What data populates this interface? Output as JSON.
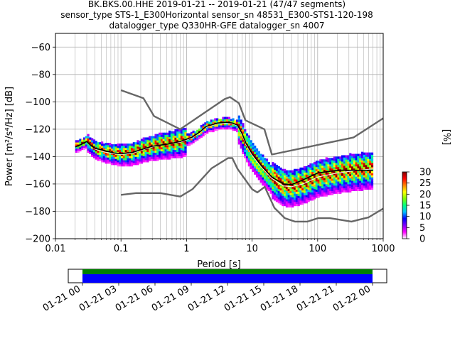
{
  "chart_data": {
    "type": "heatmap",
    "title": [
      "BK.BKS.00.HHE   2019-01-21 -- 2019-01-21  (47/47 segments)",
      "sensor_type STS-1_E300Horizontal sensor_sn 48531_E300-STS1-120-198",
      "datalogger_type Q330HR-GFE datalogger_sn 4007"
    ],
    "xlabel": "Period [s]",
    "ylabel": "Power [m²/s⁴/Hz] [dB]",
    "xscale": "log",
    "xlim": [
      0.01,
      1000
    ],
    "ylim": [
      -200,
      -50
    ],
    "x_ticks": [
      "0.01",
      "0.1",
      "1",
      "10",
      "100",
      "1000"
    ],
    "y_ticks": [
      "−200",
      "−180",
      "−160",
      "−140",
      "−120",
      "−100",
      "−80",
      "−60"
    ],
    "grid": true,
    "colorbar": {
      "label": "[%]",
      "range": [
        0,
        30
      ],
      "ticks": [
        "0",
        "5",
        "10",
        "15",
        "20",
        "25",
        "30"
      ],
      "colors": [
        "#ffffff",
        "#ff00ff",
        "#7f00ff",
        "#0000ff",
        "#00c0ff",
        "#00ff80",
        "#80ff00",
        "#ffff00",
        "#ff8000",
        "#ff0000",
        "#800000"
      ]
    },
    "noise_models": {
      "high": {
        "x": [
          0.1,
          0.22,
          0.32,
          0.8,
          3.8,
          4.6,
          6.3,
          7.9,
          15.4,
          20,
          354.8,
          1000
        ],
        "y": [
          -91.5,
          -97.4,
          -110.5,
          -120,
          -98,
          -96.5,
          -101,
          -113.5,
          -120,
          -138.5,
          -126,
          -112
        ]
      },
      "low": {
        "x": [
          0.1,
          0.17,
          0.4,
          0.8,
          1.24,
          2.4,
          4.3,
          5,
          6,
          10,
          12,
          15.6,
          21.9,
          31.6,
          45,
          70,
          101,
          154,
          328,
          600,
          1000
        ],
        "y": [
          -168,
          -166.7,
          -166.7,
          -169.2,
          -163.7,
          -148.6,
          -141.1,
          -141.1,
          -149,
          -163.8,
          -166.2,
          -162.1,
          -177.5,
          -185,
          -187.5,
          -187.5,
          -185,
          -185,
          -187.5,
          -184.4,
          -178
        ]
      }
    },
    "mean_curve": {
      "x": [
        0.02,
        0.025,
        0.03,
        0.035,
        0.04,
        0.05,
        0.06,
        0.08,
        0.1,
        0.15,
        0.2,
        0.3,
        0.5,
        0.8,
        1.2,
        1.6,
        2,
        3,
        4,
        5,
        6,
        7,
        8,
        10,
        14,
        20,
        30,
        40,
        60,
        100,
        200,
        400,
        700
      ],
      "y": [
        -133,
        -131,
        -129,
        -132,
        -134,
        -135,
        -136,
        -137.5,
        -138,
        -137,
        -135,
        -132.5,
        -131,
        -129,
        -126,
        -122,
        -118,
        -115.5,
        -115,
        -115.5,
        -117,
        -123,
        -130,
        -138,
        -147,
        -155,
        -160,
        -160.5,
        -157,
        -152,
        -150,
        -150,
        -150
      ]
    },
    "mode_curve": {
      "x": [
        0.02,
        0.025,
        0.03,
        0.035,
        0.04,
        0.05,
        0.06,
        0.08,
        0.1,
        0.15,
        0.2,
        0.3,
        0.5,
        0.8,
        1.2,
        1.6,
        2,
        3,
        4,
        5,
        6,
        7,
        8,
        10,
        14,
        20,
        30,
        40,
        60,
        100,
        200,
        400,
        700
      ],
      "y": [
        -133,
        -131,
        -129,
        -132,
        -134.5,
        -136,
        -137,
        -138,
        -138.5,
        -137.5,
        -135.5,
        -133,
        -131,
        -129.5,
        -126.5,
        -122.5,
        -118.5,
        -116,
        -115.5,
        -116,
        -117.5,
        -124,
        -131,
        -139,
        -148,
        -156,
        -161.5,
        -162,
        -160,
        -155,
        -152,
        -150,
        -149
      ]
    },
    "time_axis": {
      "ticks": [
        "01-21 00",
        "01-21 03",
        "01-21 06",
        "01-21 09",
        "01-21 12",
        "01-21 15",
        "01-21 18",
        "01-21 21",
        "01-22 00"
      ],
      "coverage": [
        {
          "color": "#008000"
        },
        {
          "color": "#0000ff"
        }
      ]
    }
  }
}
